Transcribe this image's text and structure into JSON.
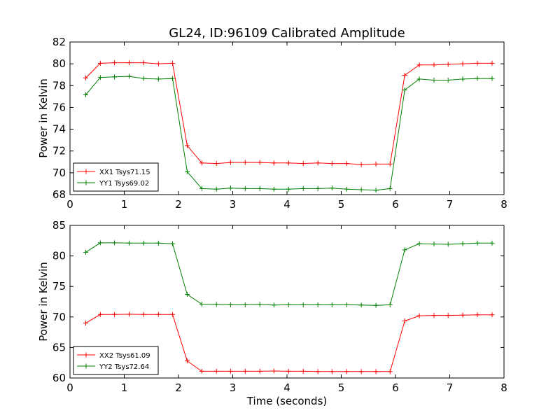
{
  "figure": {
    "title": "GL24, ID:96109 Calibrated Amplitude",
    "xlabel": "Time (seconds)"
  },
  "chart_data": [
    {
      "type": "line",
      "title": "GL24, ID:96109 Calibrated Amplitude",
      "xlabel": "",
      "ylabel": "Power in Kelvin",
      "xlim": [
        0,
        8
      ],
      "ylim": [
        68,
        82
      ],
      "xticks": [
        "0",
        "1",
        "2",
        "3",
        "4",
        "5",
        "6",
        "7",
        "8"
      ],
      "yticks": [
        "68",
        "70",
        "72",
        "74",
        "76",
        "78",
        "80",
        "82"
      ],
      "xtick_values": [
        0,
        1,
        2,
        3,
        4,
        5,
        6,
        7,
        8
      ],
      "ytick_values": [
        68,
        70,
        72,
        74,
        76,
        78,
        80,
        82
      ],
      "grid": false,
      "legend_position": "lower-left",
      "x": [
        0.29,
        0.56,
        0.82,
        1.09,
        1.36,
        1.63,
        1.89,
        2.16,
        2.43,
        2.7,
        2.96,
        3.23,
        3.5,
        3.76,
        4.03,
        4.3,
        4.57,
        4.83,
        5.1,
        5.37,
        5.64,
        5.9,
        6.17,
        6.44,
        6.71,
        6.97,
        7.24,
        7.51,
        7.78
      ],
      "series": [
        {
          "name": "XX1 Tsys71.15",
          "color": "#ff0000",
          "values": [
            78.7,
            80.05,
            80.1,
            80.1,
            80.1,
            80.0,
            80.05,
            72.5,
            70.9,
            70.85,
            70.95,
            70.95,
            70.95,
            70.9,
            70.9,
            70.85,
            70.9,
            70.85,
            70.85,
            70.75,
            70.8,
            70.8,
            78.95,
            79.9,
            79.9,
            79.95,
            80.0,
            80.05,
            80.05
          ]
        },
        {
          "name": "YY1 Tsys69.02",
          "color": "#008000",
          "values": [
            77.15,
            78.75,
            78.8,
            78.85,
            78.65,
            78.6,
            78.65,
            70.1,
            68.55,
            68.5,
            68.6,
            68.55,
            68.55,
            68.5,
            68.5,
            68.55,
            68.55,
            68.6,
            68.5,
            68.45,
            68.4,
            68.55,
            77.6,
            78.6,
            78.5,
            78.5,
            78.6,
            78.65,
            78.65
          ]
        }
      ]
    },
    {
      "type": "line",
      "title": "",
      "xlabel": "Time (seconds)",
      "ylabel": "Power in Kelvin",
      "xlim": [
        0,
        8
      ],
      "ylim": [
        60,
        85
      ],
      "xticks": [
        "0",
        "1",
        "2",
        "3",
        "4",
        "5",
        "6",
        "7",
        "8"
      ],
      "yticks": [
        "60",
        "65",
        "70",
        "75",
        "80",
        "85"
      ],
      "xtick_values": [
        0,
        1,
        2,
        3,
        4,
        5,
        6,
        7,
        8
      ],
      "ytick_values": [
        60,
        65,
        70,
        75,
        80,
        85
      ],
      "grid": false,
      "legend_position": "lower-left",
      "x": [
        0.29,
        0.56,
        0.82,
        1.09,
        1.36,
        1.63,
        1.89,
        2.16,
        2.43,
        2.7,
        2.96,
        3.23,
        3.5,
        3.76,
        4.03,
        4.3,
        4.57,
        4.83,
        5.1,
        5.37,
        5.64,
        5.9,
        6.17,
        6.44,
        6.71,
        6.97,
        7.24,
        7.51,
        7.78
      ],
      "series": [
        {
          "name": "XX2 Tsys61.09",
          "color": "#ff0000",
          "values": [
            69.0,
            70.4,
            70.4,
            70.45,
            70.4,
            70.4,
            70.4,
            62.8,
            61.1,
            61.1,
            61.1,
            61.1,
            61.1,
            61.15,
            61.1,
            61.1,
            61.05,
            61.05,
            61.05,
            61.05,
            61.05,
            61.05,
            69.35,
            70.2,
            70.25,
            70.25,
            70.3,
            70.35,
            70.35
          ]
        },
        {
          "name": "YY2 Tsys72.64",
          "color": "#008000",
          "values": [
            80.6,
            82.15,
            82.15,
            82.1,
            82.1,
            82.1,
            82.0,
            73.7,
            72.1,
            72.05,
            72.0,
            72.0,
            72.05,
            71.95,
            72.0,
            72.0,
            72.0,
            72.0,
            72.0,
            71.95,
            71.9,
            72.0,
            81.0,
            82.0,
            81.95,
            81.9,
            82.0,
            82.1,
            82.1
          ]
        }
      ]
    }
  ]
}
